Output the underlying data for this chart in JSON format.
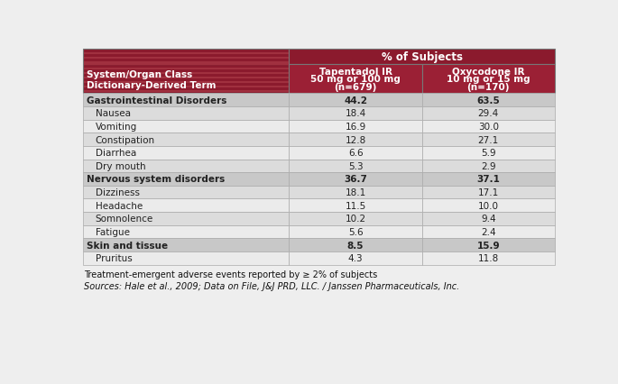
{
  "title_header": "% of Subjects",
  "col1_header_line1": "System/Organ Class",
  "col1_header_line2": "Dictionary-Derived Term",
  "col2_header_line1": "Tapentadol IR",
  "col2_header_line2": "50 mg or 100 mg",
  "col2_header_line3": "(n=679)",
  "col3_header_line1": "Oxycodone IR",
  "col3_header_line2": "10 mg or 15 mg",
  "col3_header_line3": "(n=170)",
  "rows": [
    {
      "label": "Gastrointestinal Disorders",
      "val1": "44.2",
      "val2": "63.5",
      "bold": true,
      "category": true
    },
    {
      "label": "Nausea",
      "val1": "18.4",
      "val2": "29.4",
      "bold": false,
      "category": false
    },
    {
      "label": "Vomiting",
      "val1": "16.9",
      "val2": "30.0",
      "bold": false,
      "category": false
    },
    {
      "label": "Constipation",
      "val1": "12.8",
      "val2": "27.1",
      "bold": false,
      "category": false
    },
    {
      "label": "Diarrhea",
      "val1": "6.6",
      "val2": "5.9",
      "bold": false,
      "category": false
    },
    {
      "label": "Dry mouth",
      "val1": "5.3",
      "val2": "2.9",
      "bold": false,
      "category": false
    },
    {
      "label": "Nervous system disorders",
      "val1": "36.7",
      "val2": "37.1",
      "bold": true,
      "category": true
    },
    {
      "label": "Dizziness",
      "val1": "18.1",
      "val2": "17.1",
      "bold": false,
      "category": false
    },
    {
      "label": "Headache",
      "val1": "11.5",
      "val2": "10.0",
      "bold": false,
      "category": false
    },
    {
      "label": "Somnolence",
      "val1": "10.2",
      "val2": "9.4",
      "bold": false,
      "category": false
    },
    {
      "label": "Fatigue",
      "val1": "5.6",
      "val2": "2.4",
      "bold": false,
      "category": false
    },
    {
      "label": "Skin and tissue",
      "val1": "8.5",
      "val2": "15.9",
      "bold": true,
      "category": true
    },
    {
      "label": "Pruritus",
      "val1": "4.3",
      "val2": "11.8",
      "bold": false,
      "category": false
    }
  ],
  "footnote1": "Treatment-emergent adverse events reported by ≥ 2% of subjects",
  "footnote2": "Sources: Hale et al., 2009; Data on File, J&J PRD, LLC. / Janssen Pharmaceuticals, Inc.",
  "color_header_dark": "#8B1A2D",
  "color_header_mid": "#9B2035",
  "color_row_category": "#C8C8C8",
  "color_row_odd": "#DCDCDC",
  "color_row_even": "#EBEBEB",
  "color_border": "#aaaaaa",
  "stripe_color": "#A0303F",
  "background": "#EEEEEE"
}
